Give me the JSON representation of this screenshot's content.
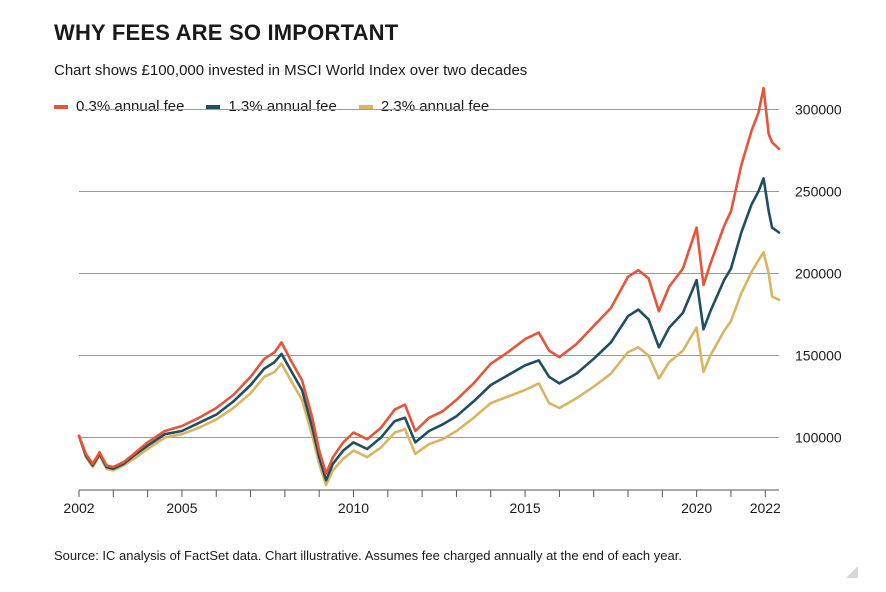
{
  "header": {
    "title": "WHY FEES ARE SO IMPORTANT",
    "subtitle": "Chart shows £100,000 invested in MSCI World Index over two decades"
  },
  "footer": {
    "source": "Source: IC analysis of FactSet data. Chart illustrative. Assumes fee charged annually at the end of each year."
  },
  "chart_data": {
    "type": "line",
    "title": "WHY FEES ARE SO IMPORTANT",
    "subtitle": "Chart shows £100,000 invested in MSCI World Index over two decades",
    "xlabel": "",
    "ylabel": "",
    "xlim": [
      2002,
      2022.4
    ],
    "ylim": [
      68000,
      318000
    ],
    "x_ticks": [
      2002,
      2005,
      2010,
      2015,
      2020,
      2022
    ],
    "y_ticks": [
      100000,
      150000,
      200000,
      250000,
      300000
    ],
    "y_tick_labels": [
      "100000",
      "150000",
      "200000",
      "250000",
      "300000"
    ],
    "grid": "horizontal",
    "legend_position": "top-left",
    "series": [
      {
        "name": "0.3% annual fee",
        "color": "#e5553a",
        "points": [
          [
            2002.0,
            101000
          ],
          [
            2002.2,
            90000
          ],
          [
            2002.4,
            84000
          ],
          [
            2002.6,
            91000
          ],
          [
            2002.8,
            83000
          ],
          [
            2003.0,
            82000
          ],
          [
            2003.3,
            85000
          ],
          [
            2003.6,
            90000
          ],
          [
            2004.0,
            97000
          ],
          [
            2004.5,
            104000
          ],
          [
            2005.0,
            107000
          ],
          [
            2005.5,
            112000
          ],
          [
            2006.0,
            118000
          ],
          [
            2006.5,
            126000
          ],
          [
            2007.0,
            137000
          ],
          [
            2007.4,
            148000
          ],
          [
            2007.7,
            152000
          ],
          [
            2007.9,
            158000
          ],
          [
            2008.2,
            146000
          ],
          [
            2008.5,
            135000
          ],
          [
            2008.8,
            112000
          ],
          [
            2009.0,
            92000
          ],
          [
            2009.2,
            78000
          ],
          [
            2009.4,
            88000
          ],
          [
            2009.7,
            97000
          ],
          [
            2010.0,
            103000
          ],
          [
            2010.4,
            99000
          ],
          [
            2010.8,
            106000
          ],
          [
            2011.2,
            117000
          ],
          [
            2011.5,
            120000
          ],
          [
            2011.8,
            104000
          ],
          [
            2012.2,
            112000
          ],
          [
            2012.6,
            116000
          ],
          [
            2013.0,
            123000
          ],
          [
            2013.5,
            133000
          ],
          [
            2014.0,
            145000
          ],
          [
            2014.5,
            152000
          ],
          [
            2015.0,
            160000
          ],
          [
            2015.4,
            164000
          ],
          [
            2015.7,
            153000
          ],
          [
            2016.0,
            149000
          ],
          [
            2016.5,
            157000
          ],
          [
            2017.0,
            168000
          ],
          [
            2017.5,
            179000
          ],
          [
            2018.0,
            198000
          ],
          [
            2018.3,
            202000
          ],
          [
            2018.6,
            197000
          ],
          [
            2018.9,
            177000
          ],
          [
            2019.2,
            192000
          ],
          [
            2019.6,
            203000
          ],
          [
            2020.0,
            228000
          ],
          [
            2020.2,
            193000
          ],
          [
            2020.4,
            206000
          ],
          [
            2020.8,
            229000
          ],
          [
            2021.0,
            238000
          ],
          [
            2021.3,
            266000
          ],
          [
            2021.6,
            287000
          ],
          [
            2021.8,
            298000
          ],
          [
            2021.95,
            313000
          ],
          [
            2022.1,
            285000
          ],
          [
            2022.2,
            280000
          ],
          [
            2022.4,
            276000
          ]
        ]
      },
      {
        "name": "1.3% annual fee",
        "color": "#1f4e5f",
        "points": [
          [
            2002.0,
            101000
          ],
          [
            2002.2,
            89000
          ],
          [
            2002.4,
            83000
          ],
          [
            2002.6,
            90000
          ],
          [
            2002.8,
            82000
          ],
          [
            2003.0,
            81000
          ],
          [
            2003.3,
            84000
          ],
          [
            2003.6,
            89000
          ],
          [
            2004.0,
            95000
          ],
          [
            2004.5,
            102000
          ],
          [
            2005.0,
            104000
          ],
          [
            2005.5,
            109000
          ],
          [
            2006.0,
            114000
          ],
          [
            2006.5,
            122000
          ],
          [
            2007.0,
            132000
          ],
          [
            2007.4,
            142000
          ],
          [
            2007.7,
            146000
          ],
          [
            2007.9,
            151000
          ],
          [
            2008.2,
            140000
          ],
          [
            2008.5,
            129000
          ],
          [
            2008.8,
            106000
          ],
          [
            2009.0,
            88000
          ],
          [
            2009.2,
            74000
          ],
          [
            2009.4,
            84000
          ],
          [
            2009.7,
            92000
          ],
          [
            2010.0,
            97000
          ],
          [
            2010.4,
            93000
          ],
          [
            2010.8,
            100000
          ],
          [
            2011.2,
            110000
          ],
          [
            2011.5,
            112000
          ],
          [
            2011.8,
            97000
          ],
          [
            2012.2,
            104000
          ],
          [
            2012.6,
            108000
          ],
          [
            2013.0,
            113000
          ],
          [
            2013.5,
            122000
          ],
          [
            2014.0,
            132000
          ],
          [
            2014.5,
            138000
          ],
          [
            2015.0,
            144000
          ],
          [
            2015.4,
            147000
          ],
          [
            2015.7,
            137000
          ],
          [
            2016.0,
            133000
          ],
          [
            2016.5,
            139000
          ],
          [
            2017.0,
            148000
          ],
          [
            2017.5,
            158000
          ],
          [
            2018.0,
            174000
          ],
          [
            2018.3,
            178000
          ],
          [
            2018.6,
            172000
          ],
          [
            2018.9,
            155000
          ],
          [
            2019.2,
            167000
          ],
          [
            2019.6,
            176000
          ],
          [
            2020.0,
            196000
          ],
          [
            2020.2,
            166000
          ],
          [
            2020.4,
            177000
          ],
          [
            2020.8,
            196000
          ],
          [
            2021.0,
            203000
          ],
          [
            2021.3,
            225000
          ],
          [
            2021.6,
            242000
          ],
          [
            2021.8,
            250000
          ],
          [
            2021.95,
            258000
          ],
          [
            2022.1,
            238000
          ],
          [
            2022.2,
            228000
          ],
          [
            2022.4,
            225000
          ]
        ]
      },
      {
        "name": "2.3% annual fee",
        "color": "#d9b462",
        "points": [
          [
            2002.0,
            101000
          ],
          [
            2002.2,
            88000
          ],
          [
            2002.4,
            82000
          ],
          [
            2002.6,
            89000
          ],
          [
            2002.8,
            81000
          ],
          [
            2003.0,
            80000
          ],
          [
            2003.3,
            83000
          ],
          [
            2003.6,
            87000
          ],
          [
            2004.0,
            93000
          ],
          [
            2004.5,
            100000
          ],
          [
            2005.0,
            102000
          ],
          [
            2005.5,
            106000
          ],
          [
            2006.0,
            111000
          ],
          [
            2006.5,
            118000
          ],
          [
            2007.0,
            127000
          ],
          [
            2007.4,
            137000
          ],
          [
            2007.7,
            140000
          ],
          [
            2007.9,
            145000
          ],
          [
            2008.2,
            134000
          ],
          [
            2008.5,
            123000
          ],
          [
            2008.8,
            101000
          ],
          [
            2009.0,
            84000
          ],
          [
            2009.2,
            71000
          ],
          [
            2009.4,
            80000
          ],
          [
            2009.7,
            87000
          ],
          [
            2010.0,
            92000
          ],
          [
            2010.4,
            88000
          ],
          [
            2010.8,
            94000
          ],
          [
            2011.2,
            103000
          ],
          [
            2011.5,
            105000
          ],
          [
            2011.8,
            90000
          ],
          [
            2012.2,
            96000
          ],
          [
            2012.6,
            99000
          ],
          [
            2013.0,
            104000
          ],
          [
            2013.5,
            112000
          ],
          [
            2014.0,
            121000
          ],
          [
            2014.5,
            125000
          ],
          [
            2015.0,
            129000
          ],
          [
            2015.4,
            133000
          ],
          [
            2015.7,
            121000
          ],
          [
            2016.0,
            118000
          ],
          [
            2016.5,
            124000
          ],
          [
            2017.0,
            131000
          ],
          [
            2017.5,
            139000
          ],
          [
            2018.0,
            152000
          ],
          [
            2018.3,
            155000
          ],
          [
            2018.6,
            150000
          ],
          [
            2018.9,
            136000
          ],
          [
            2019.2,
            146000
          ],
          [
            2019.6,
            153000
          ],
          [
            2020.0,
            167000
          ],
          [
            2020.2,
            140000
          ],
          [
            2020.4,
            150000
          ],
          [
            2020.8,
            165000
          ],
          [
            2021.0,
            171000
          ],
          [
            2021.3,
            188000
          ],
          [
            2021.6,
            201000
          ],
          [
            2021.8,
            208000
          ],
          [
            2021.95,
            213000
          ],
          [
            2022.1,
            200000
          ],
          [
            2022.2,
            186000
          ],
          [
            2022.4,
            184000
          ]
        ]
      }
    ]
  }
}
